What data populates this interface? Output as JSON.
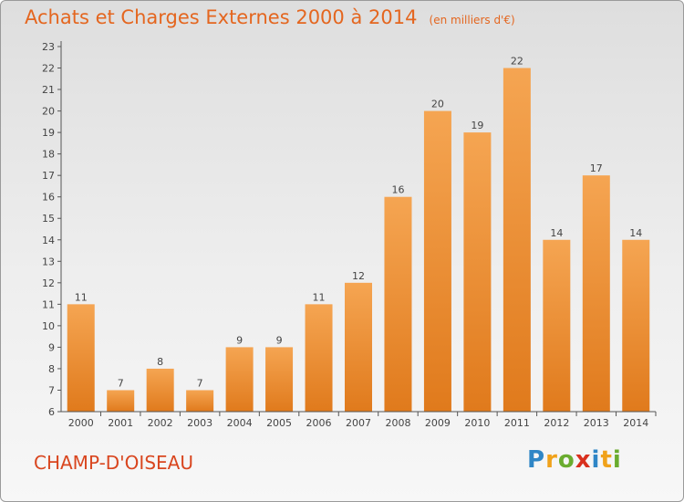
{
  "header": {
    "title": "Achats et Charges Externes 2000 à 2014",
    "unit": "(en milliers d'€)"
  },
  "footer": {
    "town": "CHAMP-D'OISEAU",
    "logo_letters": [
      {
        "char": "P",
        "color": "#2f86c6"
      },
      {
        "char": "r",
        "color": "#f0a21b"
      },
      {
        "char": "o",
        "color": "#6aac2f"
      },
      {
        "char": "x",
        "color": "#d9301e"
      },
      {
        "char": "i",
        "color": "#2f86c6"
      },
      {
        "char": "t",
        "color": "#f0a21b"
      },
      {
        "char": "i",
        "color": "#6aac2f"
      }
    ]
  },
  "colors": {
    "title": "#e4661f",
    "bar_top": "#f5a552",
    "bar_bottom": "#e07a1c",
    "town": "#d9461f"
  },
  "chart_data": {
    "type": "bar",
    "title": "Achats et Charges Externes 2000 à 2014",
    "subtitle": "(en milliers d'€)",
    "categories": [
      "2000",
      "2001",
      "2002",
      "2003",
      "2004",
      "2005",
      "2006",
      "2007",
      "2008",
      "2009",
      "2010",
      "2011",
      "2012",
      "2013",
      "2014"
    ],
    "values": [
      11,
      7,
      8,
      7,
      9,
      9,
      11,
      12,
      16,
      20,
      19,
      22,
      14,
      17,
      14
    ],
    "ylim": [
      6,
      23
    ],
    "yticks": [
      6,
      7,
      8,
      9,
      10,
      11,
      12,
      13,
      14,
      15,
      16,
      17,
      18,
      19,
      20,
      21,
      22,
      23
    ],
    "grid": false,
    "data_labels": true
  }
}
